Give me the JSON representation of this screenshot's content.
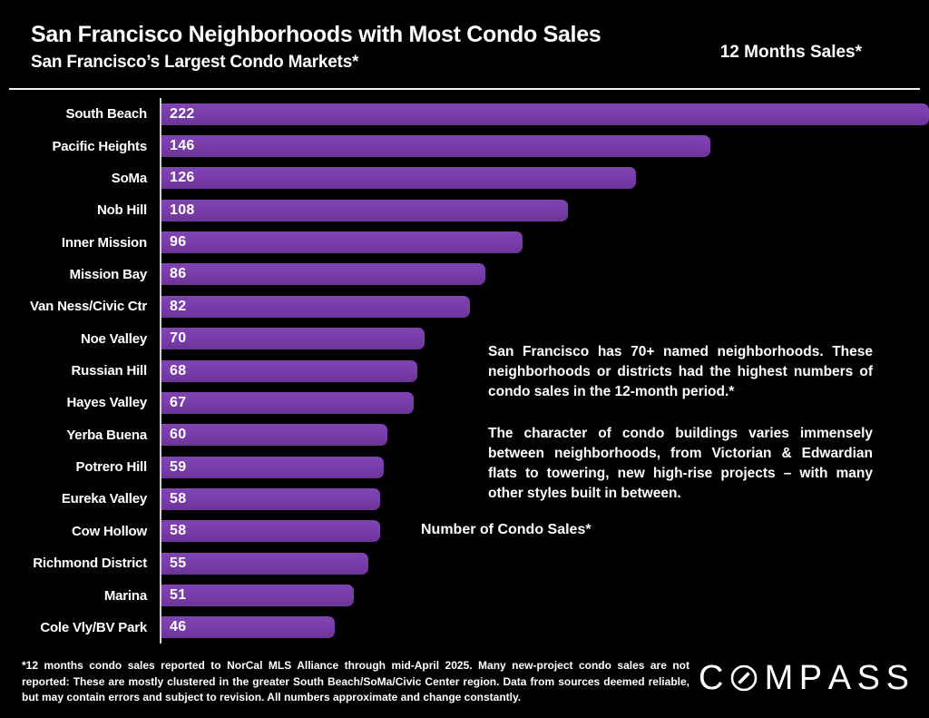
{
  "header": {
    "title": "San Francisco Neighborhoods with Most Condo Sales",
    "subtitle": "San Francisco’s Largest Condo Markets*",
    "right_label": "12 Months Sales*"
  },
  "chart_data": {
    "type": "bar",
    "orientation": "horizontal",
    "title": "San Francisco Neighborhoods with Most Condo Sales",
    "categories": [
      "South Beach",
      "Pacific Heights",
      "SoMa",
      "Nob Hill",
      "Inner Mission",
      "Mission Bay",
      "Van Ness/Civic Ctr",
      "Noe Valley",
      "Russian Hill",
      "Hayes Valley",
      "Yerba Buena",
      "Potrero Hill",
      "Eureka Valley",
      "Cow Hollow",
      "Richmond District",
      "Marina",
      "Cole Vly/BV Park"
    ],
    "values": [
      222,
      146,
      126,
      108,
      96,
      86,
      82,
      70,
      68,
      67,
      60,
      59,
      58,
      58,
      55,
      51,
      46
    ],
    "xlabel": "Number of Condo Sales*",
    "ylabel": "",
    "xlim": [
      0,
      204
    ],
    "grid": false,
    "legend": false,
    "note": "Largest bar (222) is clipped at the right edge of the plot area",
    "bar_color": "#7a3caa",
    "value_labels": "inside-left"
  },
  "annotation": {
    "para1": "San Francisco has 70+ named neighborhoods. These neighborhoods or districts had the highest numbers of condo sales in the 12-month period.*",
    "para2": "The character of condo buildings varies immensely between neighborhoods, from Victorian & Edwardian flats to towering, new high-rise projects – with many other styles built in between."
  },
  "footer": {
    "disclaimer": "*12 months condo sales reported to NorCal MLS Alliance through mid-April 2025. Many new-project condo sales are not reported:  These are mostly clustered in the greater South Beach/SoMa/Civic Center region. Data from sources deemed reliable, but may contain errors and subject to revision. All numbers approximate and change constantly.",
    "logo_text": "COMPASS"
  },
  "colors": {
    "background": "#000000",
    "bar": "#7a3caa",
    "text": "#ffffff",
    "axis_line": "#cfcfcf"
  }
}
